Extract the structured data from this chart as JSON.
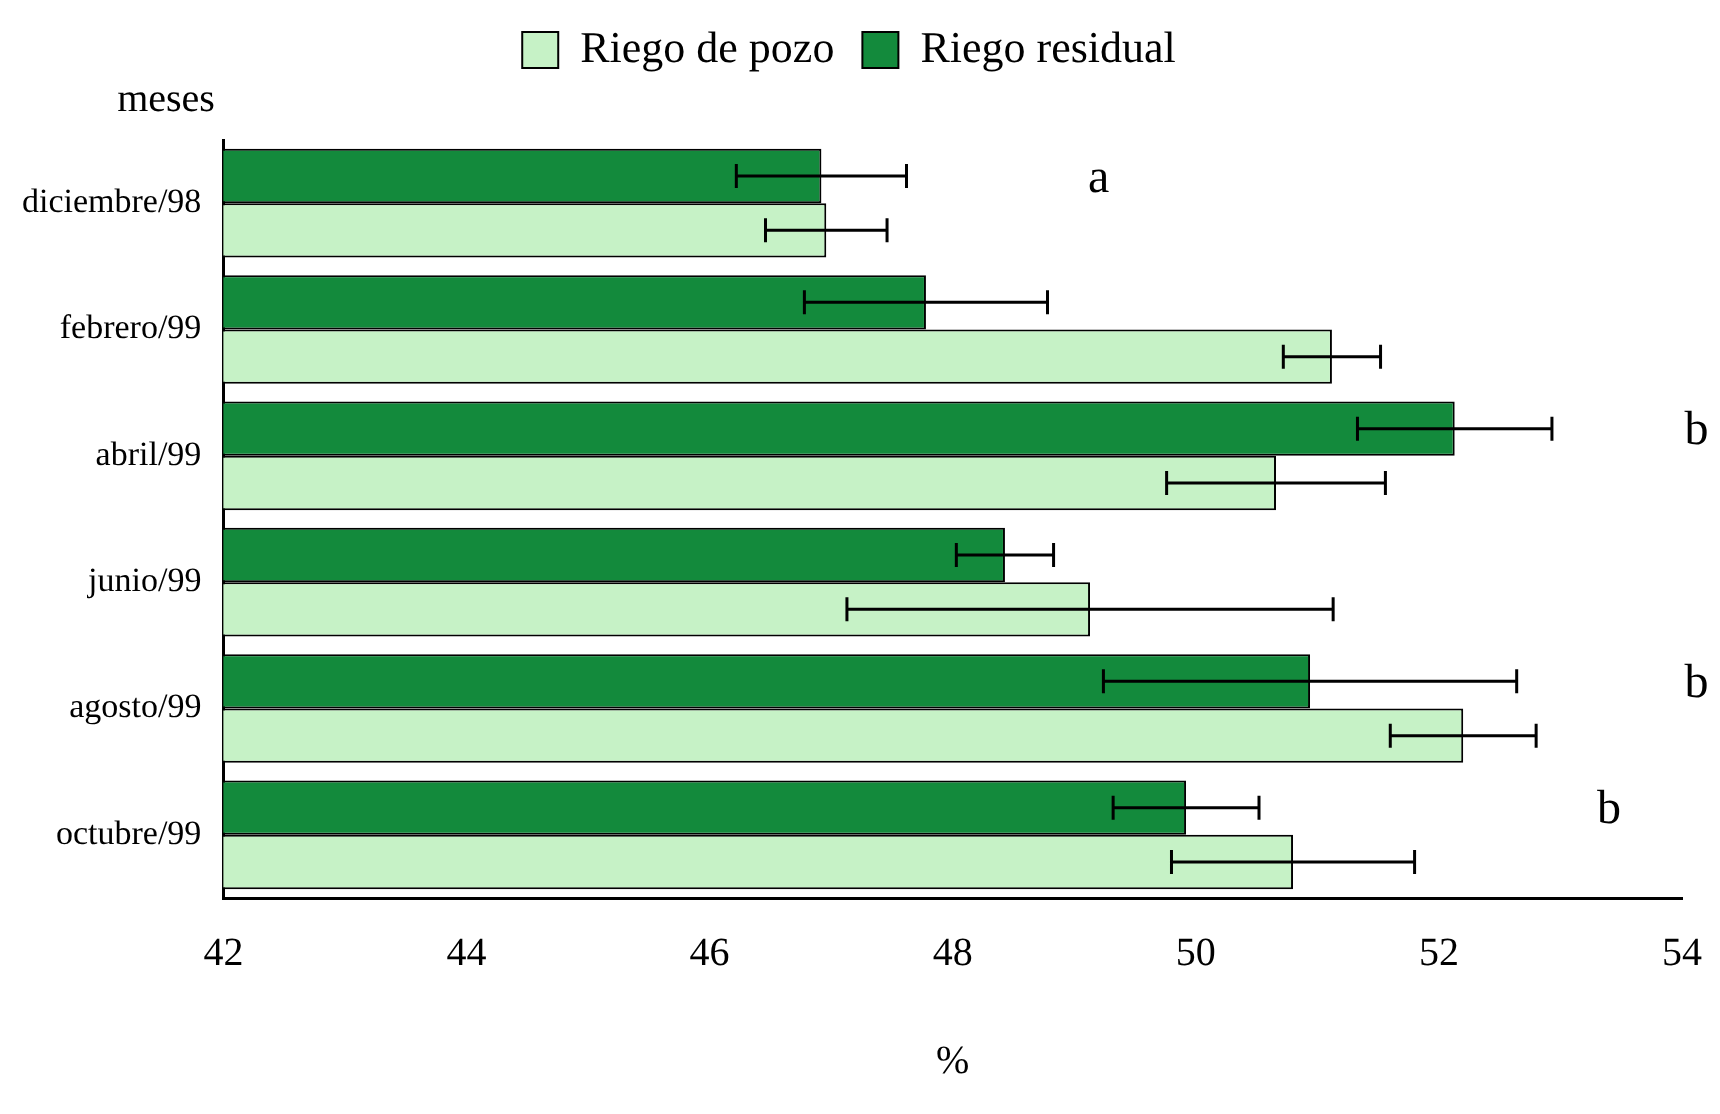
{
  "chart_data": {
    "type": "bar",
    "orientation": "horizontal",
    "xlabel": "%",
    "ylabel": "meses",
    "categories": [
      "diciembre/98",
      "febrero/99",
      "abril/99",
      "junio/99",
      "agosto/99",
      "octubre/99"
    ],
    "series": [
      {
        "name": "Riego de pozo",
        "color": "#c6f2c6",
        "values": [
          46.96,
          51.12,
          50.66,
          49.13,
          52.2,
          50.8
        ],
        "errors": [
          0.5,
          0.4,
          0.9,
          2.0,
          0.6,
          1.0
        ]
      },
      {
        "name": "Riego residual",
        "color": "#138a3c",
        "values": [
          46.92,
          47.78,
          52.13,
          48.43,
          50.94,
          49.92
        ],
        "errors": [
          0.7,
          1.0,
          0.8,
          0.4,
          1.7,
          0.6
        ]
      }
    ],
    "xlim": [
      42,
      54
    ],
    "xticks": [
      42,
      44,
      46,
      48,
      50,
      52,
      54
    ],
    "grid": false,
    "legend": "top",
    "annotations": [
      "a",
      "b",
      "b",
      "b"
    ]
  }
}
